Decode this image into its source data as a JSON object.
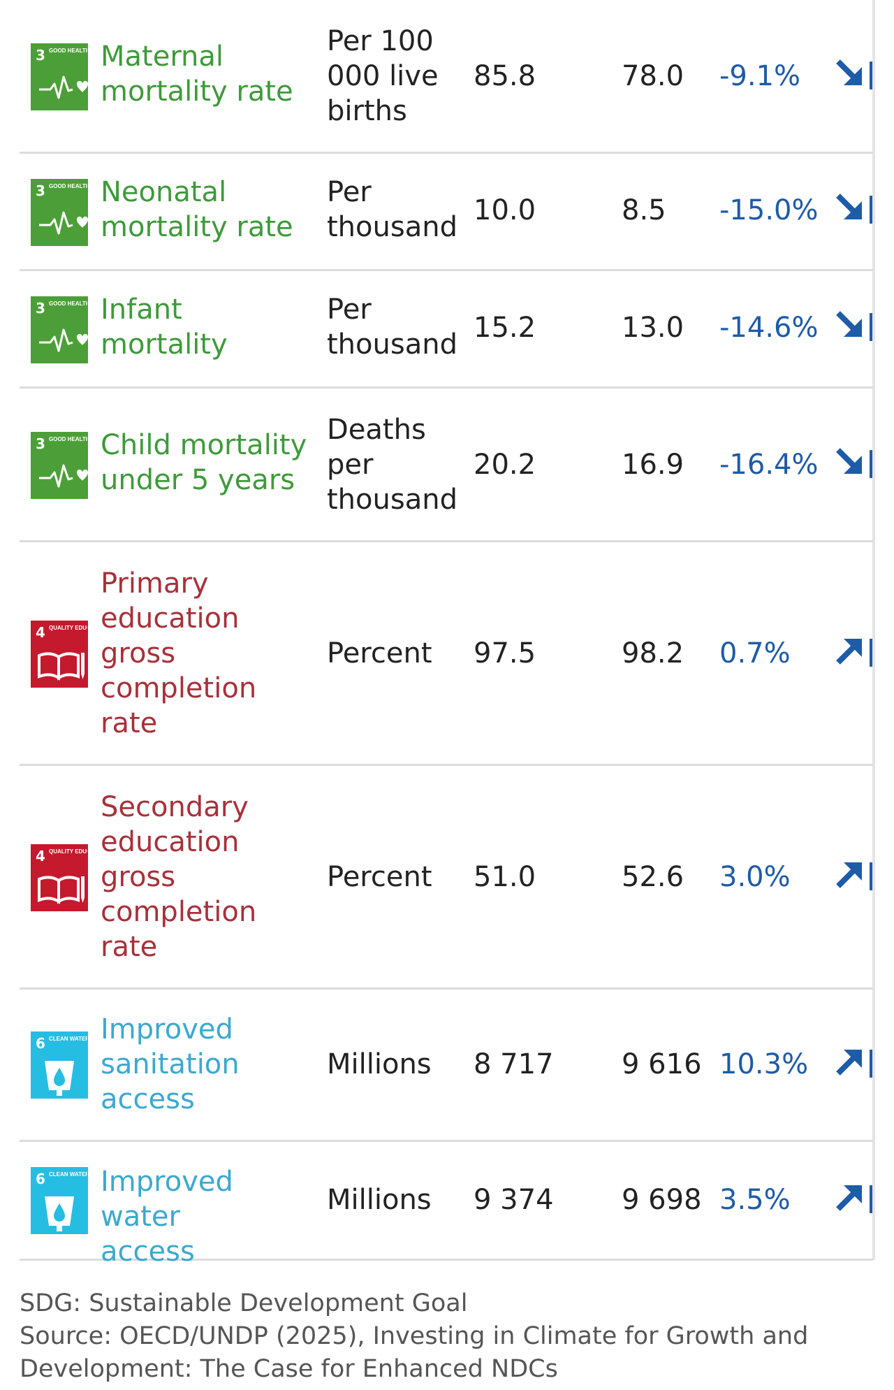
{
  "colors": {
    "sdg3": "#4c9f38",
    "sdg4": "#c5192d",
    "sdg6": "#26bde2",
    "sdg3_text": "#3e9a3a",
    "sdg4_text": "#a8303a",
    "sdg6_text": "#3ba9cf",
    "change": "#1e5ba8"
  },
  "rows": [
    {
      "sdg_number": "3",
      "sdg_goal_text": "GOOD HEALTH AND WELL-BEING",
      "sdg_icon": "heartbeat-icon",
      "indicator": "Maternal mortality rate",
      "unit": "Per 100 000 live births",
      "value_2020": "85.8",
      "value_2024": "78.0",
      "change": "-9.1%",
      "trend": "down"
    },
    {
      "sdg_number": "3",
      "sdg_goal_text": "GOOD HEALTH AND WELL-BEING",
      "sdg_icon": "heartbeat-icon",
      "indicator": "Neonatal mortality rate",
      "unit": "Per thousand",
      "value_2020": "10.0",
      "value_2024": "8.5",
      "change": "-15.0%",
      "trend": "down"
    },
    {
      "sdg_number": "3",
      "sdg_goal_text": "GOOD HEALTH AND WELL-BEING",
      "sdg_icon": "heartbeat-icon",
      "indicator": "Infant mortality",
      "unit": "Per thousand",
      "value_2020": "15.2",
      "value_2024": "13.0",
      "change": "-14.6%",
      "trend": "down"
    },
    {
      "sdg_number": "3",
      "sdg_goal_text": "GOOD HEALTH AND WELL-BEING",
      "sdg_icon": "heartbeat-icon",
      "indicator": "Child mortality under 5 years",
      "unit": "Deaths per thousand",
      "value_2020": "20.2",
      "value_2024": "16.9",
      "change": "-16.4%",
      "trend": "down"
    },
    {
      "sdg_number": "4",
      "sdg_goal_text": "QUALITY EDUCATION",
      "sdg_icon": "book-pencil-icon",
      "indicator": "Primary education gross completion rate",
      "unit": "Percent",
      "value_2020": "97.5",
      "value_2024": "98.2",
      "change": "0.7%",
      "trend": "up"
    },
    {
      "sdg_number": "4",
      "sdg_goal_text": "QUALITY EDUCATION",
      "sdg_icon": "book-pencil-icon",
      "indicator": "Secondary education gross completion rate",
      "unit": "Percent",
      "value_2020": "51.0",
      "value_2024": "52.6",
      "change": "3.0%",
      "trend": "up"
    },
    {
      "sdg_number": "6",
      "sdg_goal_text": "CLEAN WATER AND SANITATION",
      "sdg_icon": "water-drop-glass-icon",
      "indicator": "Improved sanitation access",
      "unit": "Millions",
      "value_2020": "8 717",
      "value_2024": "9 616",
      "change": "10.3%",
      "trend": "up"
    },
    {
      "sdg_number": "6",
      "sdg_goal_text": "CLEAN WATER AND SANITATION",
      "sdg_icon": "water-drop-glass-icon",
      "indicator": "Improved water access",
      "unit": "Millions",
      "value_2020": "9 374",
      "value_2024": "9 698",
      "change": "3.5%",
      "trend": "up"
    }
  ],
  "footer": {
    "abbreviation": "SDG: Sustainable Development Goal",
    "source_line1": "Source: OECD/UNDP (2025), Investing in Climate for Growth and",
    "source_line2": "Development: The Case for Enhanced NDCs"
  }
}
